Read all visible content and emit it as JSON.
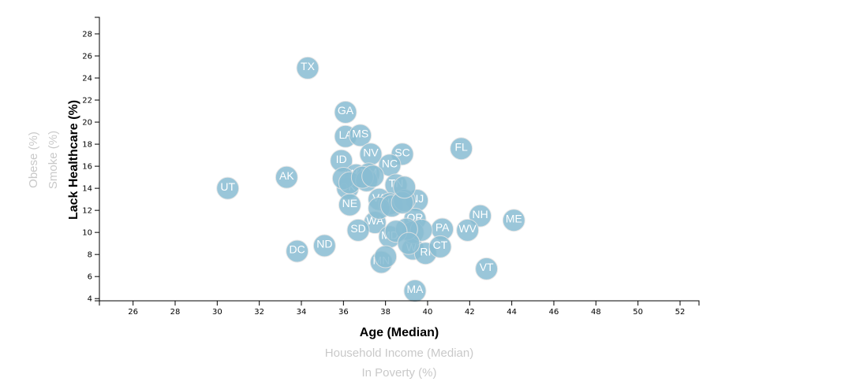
{
  "chart_data": {
    "type": "scatter",
    "x_labels": {
      "active": "Age (Median)",
      "inactive": [
        "Household Income (Median)",
        "In Poverty (%)"
      ]
    },
    "y_labels": {
      "active": "Lack Healthcare (%)",
      "inactive": [
        "Smoke (%)",
        "Obese (%)"
      ]
    },
    "xlim": [
      24.4,
      52.9
    ],
    "ylim": [
      3.8,
      29.5
    ],
    "x_ticks": [
      26,
      28,
      30,
      32,
      34,
      36,
      38,
      40,
      42,
      44,
      46,
      48,
      50,
      52
    ],
    "y_ticks": [
      4,
      6,
      8,
      10,
      12,
      14,
      16,
      18,
      20,
      22,
      24,
      26,
      28
    ],
    "colors": {
      "marker": "#89bdd3",
      "marker_text": "#ffffff",
      "inactive_label": "#c9c9c9"
    },
    "points": [
      {
        "label": "TX",
        "x": 34.3,
        "y": 24.9
      },
      {
        "label": "GA",
        "x": 36.1,
        "y": 20.9
      },
      {
        "label": "LA",
        "x": 36.1,
        "y": 18.7
      },
      {
        "label": "MS",
        "x": 36.8,
        "y": 18.8
      },
      {
        "label": "FL",
        "x": 41.6,
        "y": 17.6
      },
      {
        "label": "NV",
        "x": 37.3,
        "y": 17.1
      },
      {
        "label": "SC",
        "x": 38.8,
        "y": 17.1
      },
      {
        "label": "ID",
        "x": 35.9,
        "y": 16.5
      },
      {
        "label": "NC",
        "x": 38.2,
        "y": 16.1
      },
      {
        "label": "AK",
        "x": 33.3,
        "y": 15.0
      },
      {
        "label": "WY",
        "x": 36.6,
        "y": 15.2
      },
      {
        "label": "NM",
        "x": 37.2,
        "y": 15.3
      },
      {
        "label": "OK",
        "x": 36.2,
        "y": 14.0
      },
      {
        "label": "TN",
        "x": 38.5,
        "y": 14.3
      },
      {
        "label": "VA",
        "x": 37.7,
        "y": 13.0
      },
      {
        "label": "NJ",
        "x": 39.5,
        "y": 12.9
      },
      {
        "label": "NE",
        "x": 36.3,
        "y": 12.5
      },
      {
        "label": "NY",
        "x": 38.2,
        "y": 12.6
      },
      {
        "label": "NH",
        "x": 42.5,
        "y": 11.5
      },
      {
        "label": "ME",
        "x": 44.1,
        "y": 11.1
      },
      {
        "label": "OR",
        "x": 39.4,
        "y": 11.2
      },
      {
        "label": "WA",
        "x": 37.5,
        "y": 10.9
      },
      {
        "label": "PA",
        "x": 40.7,
        "y": 10.3
      },
      {
        "label": "WV",
        "x": 41.9,
        "y": 10.2
      },
      {
        "label": "SD",
        "x": 36.7,
        "y": 10.2
      },
      {
        "label": "MD",
        "x": 38.2,
        "y": 9.6
      },
      {
        "label": "DC",
        "x": 33.8,
        "y": 8.3
      },
      {
        "label": "ND",
        "x": 35.1,
        "y": 8.8
      },
      {
        "label": "WI",
        "x": 39.3,
        "y": 8.5
      },
      {
        "label": "RI",
        "x": 39.9,
        "y": 8.1
      },
      {
        "label": "CT",
        "x": 40.6,
        "y": 8.7
      },
      {
        "label": "MN",
        "x": 37.8,
        "y": 7.3
      },
      {
        "label": "VT",
        "x": 42.8,
        "y": 6.7
      },
      {
        "label": "MA",
        "x": 39.4,
        "y": 4.7
      },
      {
        "label": "UT",
        "x": 30.5,
        "y": 14.0
      },
      {
        "label": "",
        "x": 36.0,
        "y": 14.9
      },
      {
        "label": "",
        "x": 36.3,
        "y": 14.5
      },
      {
        "label": "",
        "x": 37.1,
        "y": 14.7
      },
      {
        "label": "",
        "x": 37.7,
        "y": 12.2
      },
      {
        "label": "",
        "x": 38.3,
        "y": 12.4
      },
      {
        "label": "",
        "x": 38.9,
        "y": 12.9
      },
      {
        "label": "",
        "x": 39.3,
        "y": 10.0
      },
      {
        "label": "",
        "x": 39.7,
        "y": 10.2
      },
      {
        "label": "",
        "x": 39.0,
        "y": 10.3
      },
      {
        "label": "",
        "x": 38.5,
        "y": 10.1
      },
      {
        "label": "",
        "x": 38.0,
        "y": 7.8
      },
      {
        "label": "",
        "x": 39.1,
        "y": 9.0
      },
      {
        "label": "",
        "x": 38.8,
        "y": 12.7
      },
      {
        "label": "",
        "x": 36.9,
        "y": 15.0
      },
      {
        "label": "",
        "x": 37.4,
        "y": 15.1
      },
      {
        "label": "",
        "x": 38.9,
        "y": 14.1
      }
    ]
  }
}
